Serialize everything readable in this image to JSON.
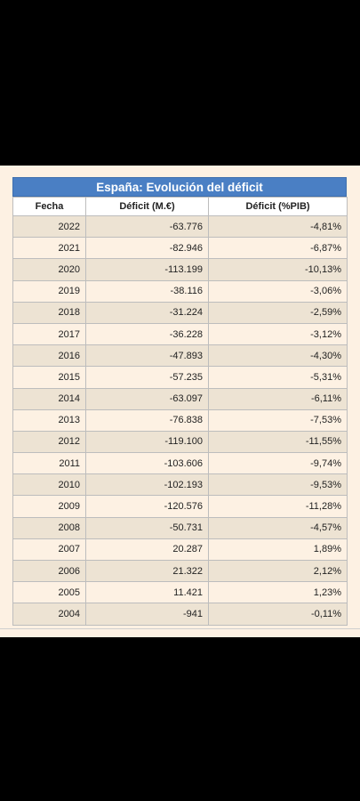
{
  "table": {
    "title": "España: Evolución del déficit",
    "headers": [
      "Fecha",
      "Déficit (M.€)",
      "Déficit (%PIB)"
    ],
    "rows": [
      [
        "2022",
        "-63.776",
        "-4,81%"
      ],
      [
        "2021",
        "-82.946",
        "-6,87%"
      ],
      [
        "2020",
        "-113.199",
        "-10,13%"
      ],
      [
        "2019",
        "-38.116",
        "-3,06%"
      ],
      [
        "2018",
        "-31.224",
        "-2,59%"
      ],
      [
        "2017",
        "-36.228",
        "-3,12%"
      ],
      [
        "2016",
        "-47.893",
        "-4,30%"
      ],
      [
        "2015",
        "-57.235",
        "-5,31%"
      ],
      [
        "2014",
        "-63.097",
        "-6,11%"
      ],
      [
        "2013",
        "-76.838",
        "-7,53%"
      ],
      [
        "2012",
        "-119.100",
        "-11,55%"
      ],
      [
        "2011",
        "-103.606",
        "-9,74%"
      ],
      [
        "2010",
        "-102.193",
        "-9,53%"
      ],
      [
        "2009",
        "-120.576",
        "-11,28%"
      ],
      [
        "2008",
        "-50.731",
        "-4,57%"
      ],
      [
        "2007",
        "20.287",
        "1,89%"
      ],
      [
        "2006",
        "21.322",
        "2,12%"
      ],
      [
        "2005",
        "11.421",
        "1,23%"
      ],
      [
        "2004",
        "-941",
        "-0,11%"
      ]
    ]
  },
  "colors": {
    "title_bg": "#4a7fc4",
    "row_shaded": "#ede3d3",
    "row_plain": "#fdf1e3"
  }
}
